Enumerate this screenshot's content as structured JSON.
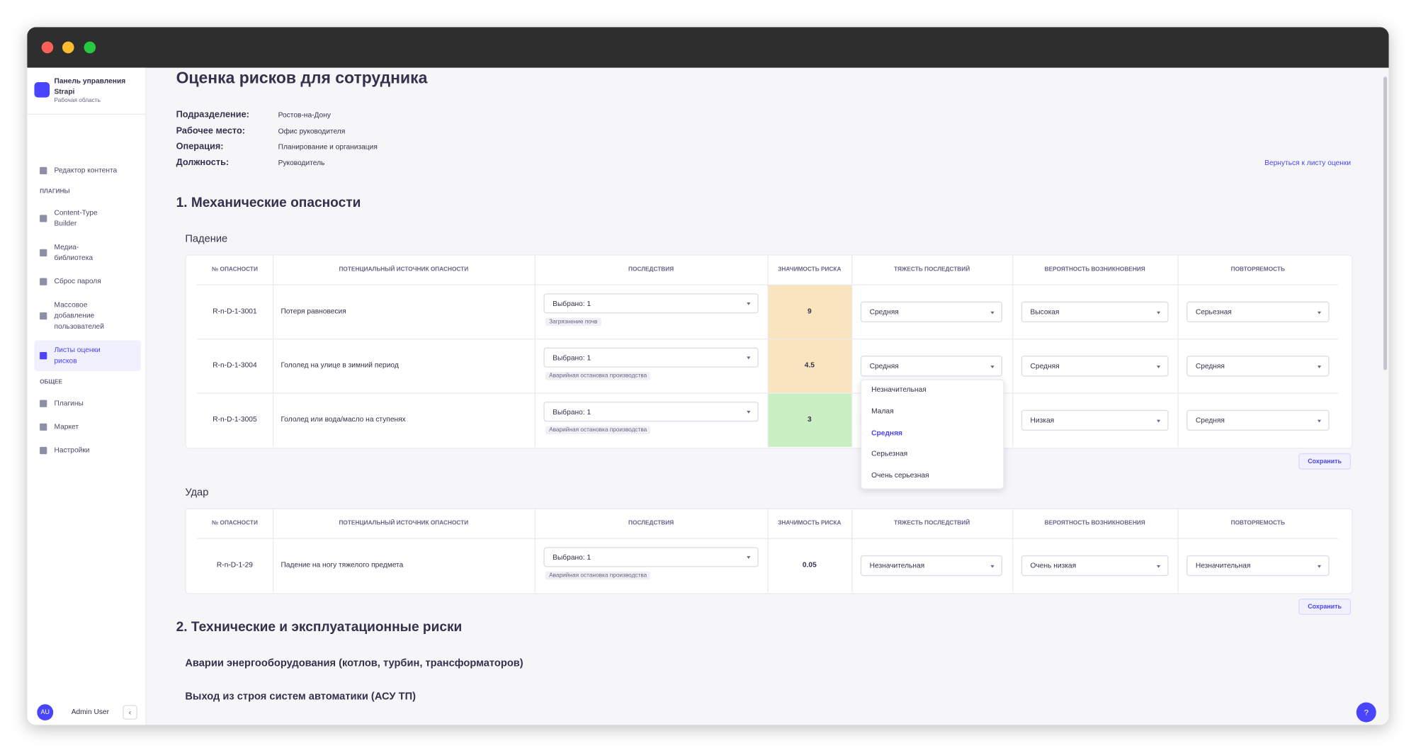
{
  "sidebar": {
    "brand": "Панель управления Strapi",
    "workspace": "Рабочая область",
    "groups": [
      {
        "items": [
          {
            "label": "Редактор контента"
          }
        ]
      },
      {
        "heading": "ПЛАГИНЫ",
        "items": [
          {
            "label": "Content-Type Builder"
          },
          {
            "label": "Медиа-библиотека"
          },
          {
            "label": "Сброс пароля"
          },
          {
            "label": "Массовое добавление пользователей"
          },
          {
            "label": "Листы оценки рисков",
            "active": true
          }
        ]
      },
      {
        "heading": "ОБЩЕЕ",
        "items": [
          {
            "label": "Плагины"
          },
          {
            "label": "Маркет"
          },
          {
            "label": "Настройки"
          }
        ]
      }
    ],
    "user": {
      "initials": "AU",
      "name": "Admin User"
    }
  },
  "page": {
    "title": "Оценка рисков для сотрудника",
    "fields": [
      {
        "label": "Подразделение:",
        "value": "Ростов-на-Дону"
      },
      {
        "label": "Рабочее место:",
        "value": "Офис руководителя"
      },
      {
        "label": "Операция:",
        "value": "Планирование и организация"
      },
      {
        "label": "Должность:",
        "value": "Руководитель"
      }
    ],
    "back_link": "Вернуться к листу оценки",
    "columns": [
      "№ ОПАСНОСТИ",
      "ПОТЕНЦИАЛЬНЫЙ ИСТОЧНИК ОПАСНОСТИ",
      "ПОСЛЕДСТВИЯ",
      "ЗНАЧИМОСТЬ РИСКА",
      "ТЯЖЕСТЬ ПОСЛЕДСТВИЙ",
      "ВЕРОЯТНОСТЬ ВОЗНИКНОВЕНИЯ",
      "ПОВТОРЯЕМОСТЬ"
    ],
    "sections": [
      {
        "title": "1. Механические опасности",
        "groups": [
          {
            "title": "Падение",
            "save": "Сохранить",
            "rows": [
              {
                "id": "R-n-D-1-3001",
                "source": "Потеря равновесия",
                "consequence": "Выбрано: 1",
                "consequence_tag": "Загрязнение почв",
                "score": 9,
                "score_color": "#f9e4bd",
                "severity": "Средняя",
                "probability": "Высокая",
                "repeatability": "Серьезная"
              },
              {
                "id": "R-n-D-1-3004",
                "source": "Гололед на улице в зимний период",
                "consequence": "Выбрано: 1",
                "consequence_tag": "Аварийная остановка производства",
                "score": 4.5,
                "score_color": "#f9e4bd",
                "severity": "Средняя",
                "probability": "Средняя",
                "repeatability": "Средняя"
              },
              {
                "id": "R-n-D-1-3005",
                "source": "Гололед или вода/масло на ступенях",
                "consequence": "Выбрано: 1",
                "consequence_tag": "Аварийная остановка производства",
                "score": 3,
                "score_color": "#c9eec2",
                "severity": null,
                "probability": "Низкая",
                "repeatability": "Средняя"
              }
            ],
            "dropdown": {
              "row": 1,
              "options": [
                "Незначительная",
                "Малая",
                "Средняя",
                "Серьезная",
                "Очень серьезная"
              ],
              "selected": 2
            }
          },
          {
            "title": "Удар",
            "save": "Сохранить",
            "rows": [
              {
                "id": "R-n-D-1-29",
                "source": "Падение на ногу тяжелого предмета",
                "consequence": "Выбрано: 1",
                "consequence_tag": "Аварийная остановка производства",
                "score": 0.05,
                "severity": "Незначительная",
                "probability": "Очень низкая",
                "repeatability": "Незначительная"
              }
            ]
          }
        ]
      },
      {
        "title": "2. Технические и эксплуатационные риски",
        "groups": [
          {
            "title": "Аварии энергооборудования (котлов, турбин, трансформаторов)"
          },
          {
            "title": "Выход из строя систем автоматики (АСУ ТП)"
          }
        ]
      }
    ],
    "help": "?"
  }
}
